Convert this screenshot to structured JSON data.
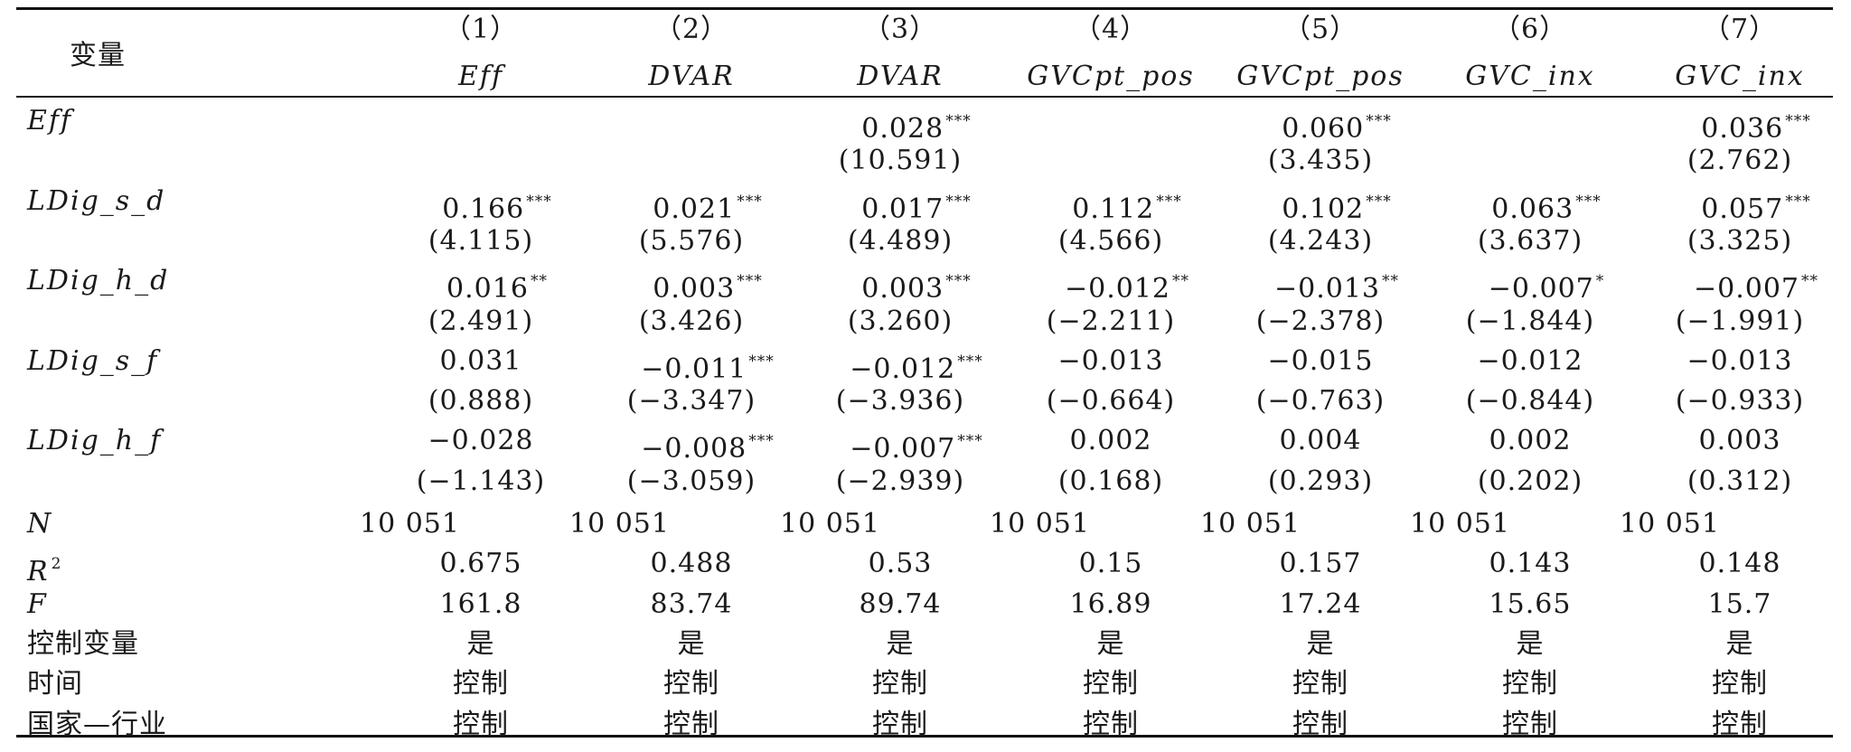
{
  "header": {
    "var_label": "变量",
    "numbers": [
      "（1）",
      "（2）",
      "（3）",
      "（4）",
      "（5）",
      "（6）",
      "（7）"
    ],
    "dep_vars": [
      "Eff",
      "DVAR",
      "DVAR",
      "GVCpt_pos",
      "GVCpt_pos",
      "GVC_inx",
      "GVC_inx"
    ]
  },
  "rows": [
    {
      "label": "Eff",
      "italic": true,
      "coef": [
        "",
        "",
        "0.028",
        "",
        "0.060",
        "",
        "0.036"
      ],
      "sig": [
        "",
        "",
        "***",
        "",
        "***",
        "",
        "***"
      ],
      "t": [
        "",
        "",
        "(10.591)",
        "",
        "(3.435)",
        "",
        "(2.762)"
      ]
    },
    {
      "label": "LDig_s_d",
      "italic": true,
      "coef": [
        "0.166",
        "0.021",
        "0.017",
        "0.112",
        "0.102",
        "0.063",
        "0.057"
      ],
      "sig": [
        "***",
        "***",
        "***",
        "***",
        "***",
        "***",
        "***"
      ],
      "t": [
        "(4.115)",
        "(5.576)",
        "(4.489)",
        "(4.566)",
        "(4.243)",
        "(3.637)",
        "(3.325)"
      ]
    },
    {
      "label": "LDig_h_d",
      "italic": true,
      "coef": [
        "0.016",
        "0.003",
        "0.003",
        "−0.012",
        "−0.013",
        "−0.007",
        "−0.007"
      ],
      "sig": [
        "**",
        "***",
        "***",
        "**",
        "**",
        "*",
        "**"
      ],
      "t": [
        "(2.491)",
        "(3.426)",
        "(3.260)",
        "(−2.211)",
        "(−2.378)",
        "(−1.844)",
        "(−1.991)"
      ]
    },
    {
      "label": "LDig_s_f",
      "italic": true,
      "coef": [
        "0.031",
        "−0.011",
        "−0.012",
        "−0.013",
        "−0.015",
        "−0.012",
        "−0.013"
      ],
      "sig": [
        "",
        "***",
        "***",
        "",
        "",
        "",
        ""
      ],
      "t": [
        "(0.888)",
        "(−3.347)",
        "(−3.936)",
        "(−0.664)",
        "(−0.763)",
        "(−0.844)",
        "(−0.933)"
      ]
    },
    {
      "label": "LDig_h_f",
      "italic": true,
      "coef": [
        "−0.028",
        "−0.008",
        "−0.007",
        "0.002",
        "0.004",
        "0.002",
        "0.003"
      ],
      "sig": [
        "",
        "***",
        "***",
        "",
        "",
        "",
        ""
      ],
      "t": [
        "(−1.143)",
        "(−3.059)",
        "(−2.939)",
        "(0.168)",
        "(0.293)",
        "(0.202)",
        "(0.312)"
      ]
    }
  ],
  "stats": [
    {
      "label": "N",
      "italic": true,
      "values": [
        "10 051",
        "10 051",
        "10 051",
        "10 051",
        "10 051",
        "10 051",
        "10 051"
      ]
    },
    {
      "label": "R",
      "italic": true,
      "sup": "2",
      "values": [
        "0.675",
        "0.488",
        "0.53",
        "0.15",
        "0.157",
        "0.143",
        "0.148"
      ]
    },
    {
      "label": "F",
      "italic": true,
      "values": [
        "161.8",
        "83.74",
        "89.74",
        "16.89",
        "17.24",
        "15.65",
        "15.7"
      ]
    },
    {
      "label": "控制变量",
      "italic": false,
      "values": [
        "是",
        "是",
        "是",
        "是",
        "是",
        "是",
        "是"
      ]
    },
    {
      "label": "时间",
      "italic": false,
      "values": [
        "控制",
        "控制",
        "控制",
        "控制",
        "控制",
        "控制",
        "控制"
      ]
    },
    {
      "label": "国家—行业",
      "italic": false,
      "values": [
        "控制",
        "控制",
        "控制",
        "控制",
        "控制",
        "控制",
        "控制"
      ]
    }
  ]
}
